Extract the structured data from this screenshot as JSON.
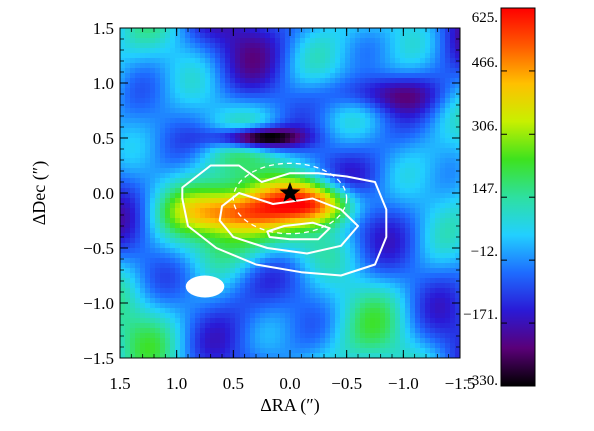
{
  "chart_data": {
    "type": "heatmap",
    "title": "",
    "xlabel": "ΔRA (″)",
    "ylabel": "ΔDec (″)",
    "xlim": [
      1.5,
      -1.5
    ],
    "ylim": [
      -1.5,
      1.5
    ],
    "x_ticks": [
      1.5,
      1.0,
      0.5,
      0.0,
      -0.5,
      -1.0,
      -1.5
    ],
    "x_tick_labels": [
      "1.5",
      "1.0",
      "0.5",
      "0.0",
      "−0.5",
      "−1.0",
      "−1.5"
    ],
    "y_ticks": [
      1.5,
      1.0,
      0.5,
      0.0,
      -0.5,
      -1.0,
      -1.5
    ],
    "y_tick_labels": [
      "1.5",
      "1.0",
      "0.5",
      "0.0",
      "−0.5",
      "−1.0",
      "−1.5"
    ],
    "colorbar": {
      "min": -330,
      "max": 625,
      "ticks": [
        625,
        466,
        306,
        147,
        -12,
        -171,
        -330
      ],
      "tick_labels": [
        "625.",
        "466.",
        "306.",
        "147.",
        "−12.",
        "−171.",
        "−330."
      ],
      "colormap": "rainbow"
    },
    "peak": {
      "x": 0.0,
      "y": -0.05,
      "value": 625
    },
    "emission_components": [
      {
        "x": 0.55,
        "y": -0.18,
        "sx": 0.3,
        "sy": 0.14,
        "amp": 430
      },
      {
        "x": 0.15,
        "y": -0.1,
        "sx": 0.28,
        "sy": 0.18,
        "amp": 200
      },
      {
        "x": -0.28,
        "y": -0.1,
        "sx": 0.24,
        "sy": 0.14,
        "amp": 520
      },
      {
        "x": 0.25,
        "y": -0.48,
        "sx": 0.45,
        "sy": 0.16,
        "amp": 150
      },
      {
        "x": 0.3,
        "y": 0.5,
        "sx": 0.25,
        "sy": 0.07,
        "amp": -480
      },
      {
        "x": -0.8,
        "y": 0.9,
        "sx": 0.35,
        "sy": 0.12,
        "amp": -200
      },
      {
        "x": 1.0,
        "y": -0.05,
        "sx": 0.3,
        "sy": 0.3,
        "amp": 120
      }
    ],
    "star_marker": {
      "x": 0.0,
      "y": 0.0
    },
    "beam": {
      "x": 0.75,
      "y": -0.85,
      "major": 0.34,
      "minor": 0.2,
      "pa_deg": 0
    },
    "dashed_ellipse": {
      "x": 0.0,
      "y": -0.05,
      "rx": 0.5,
      "ry": 0.32
    },
    "contours": [
      {
        "level": "outer",
        "points": [
          [
            0.95,
            0.05
          ],
          [
            0.7,
            0.25
          ],
          [
            0.45,
            0.25
          ],
          [
            0.25,
            0.1
          ],
          [
            0.0,
            0.18
          ],
          [
            -0.25,
            0.18
          ],
          [
            -0.5,
            0.15
          ],
          [
            -0.75,
            0.1
          ],
          [
            -0.85,
            -0.15
          ],
          [
            -0.85,
            -0.4
          ],
          [
            -0.75,
            -0.65
          ],
          [
            -0.45,
            -0.75
          ],
          [
            -0.1,
            -0.72
          ],
          [
            0.3,
            -0.65
          ],
          [
            0.65,
            -0.5
          ],
          [
            0.9,
            -0.3
          ],
          [
            0.95,
            -0.05
          ]
        ]
      },
      {
        "level": "middle",
        "points": [
          [
            0.6,
            -0.12
          ],
          [
            0.45,
            0.0
          ],
          [
            0.15,
            -0.1
          ],
          [
            -0.2,
            -0.05
          ],
          [
            -0.45,
            -0.15
          ],
          [
            -0.6,
            -0.3
          ],
          [
            -0.45,
            -0.48
          ],
          [
            -0.15,
            -0.55
          ],
          [
            0.2,
            -0.5
          ],
          [
            0.5,
            -0.4
          ],
          [
            0.62,
            -0.25
          ]
        ]
      },
      {
        "level": "inner",
        "points": [
          [
            0.2,
            -0.35
          ],
          [
            0.05,
            -0.3
          ],
          [
            -0.2,
            -0.27
          ],
          [
            -0.35,
            -0.32
          ],
          [
            -0.25,
            -0.42
          ],
          [
            0.0,
            -0.42
          ],
          [
            0.18,
            -0.4
          ]
        ]
      }
    ]
  }
}
